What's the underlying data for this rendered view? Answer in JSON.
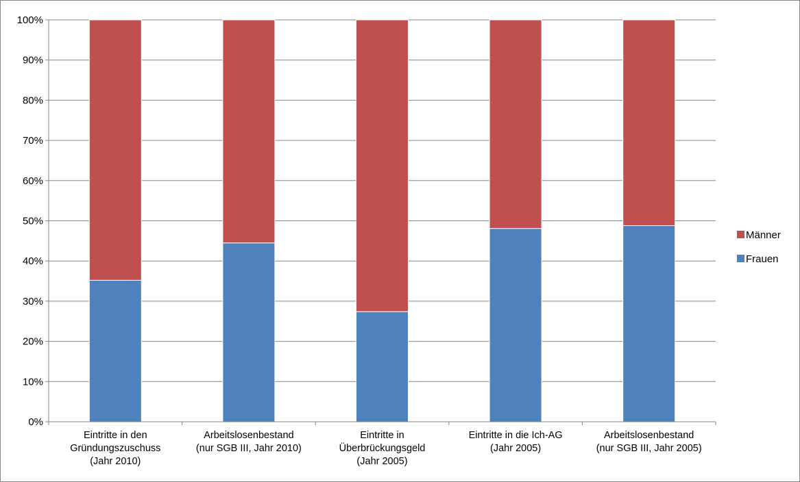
{
  "chart_data": {
    "type": "bar",
    "stacked": true,
    "percent": true,
    "categories": [
      [
        "Eintritte in  den",
        "Gründungszuschuss",
        "(Jahr 2010)"
      ],
      [
        "Arbeitslosenbestand",
        "(nur SGB III, Jahr 2010)"
      ],
      [
        "Eintritte in",
        "Überbrückungsgeld",
        "(Jahr 2005)"
      ],
      [
        "Eintritte in die Ich-AG",
        "(Jahr 2005)"
      ],
      [
        "Arbeitslosenbestand",
        "(nur SGB III, Jahr 2005)"
      ]
    ],
    "series": [
      {
        "name": "Frauen",
        "color": "#4F81BD",
        "values": [
          35.2,
          44.5,
          27.4,
          48.1,
          48.8
        ]
      },
      {
        "name": "Männer",
        "color": "#C0504D",
        "values": [
          64.8,
          55.5,
          72.6,
          51.9,
          51.2
        ]
      }
    ],
    "yticks": [
      "0%",
      "10%",
      "20%",
      "30%",
      "40%",
      "50%",
      "60%",
      "70%",
      "80%",
      "90%",
      "100%"
    ],
    "ylim": [
      0,
      100
    ],
    "grid": true,
    "legend_position": "right",
    "legend_order": [
      "Männer",
      "Frauen"
    ]
  }
}
